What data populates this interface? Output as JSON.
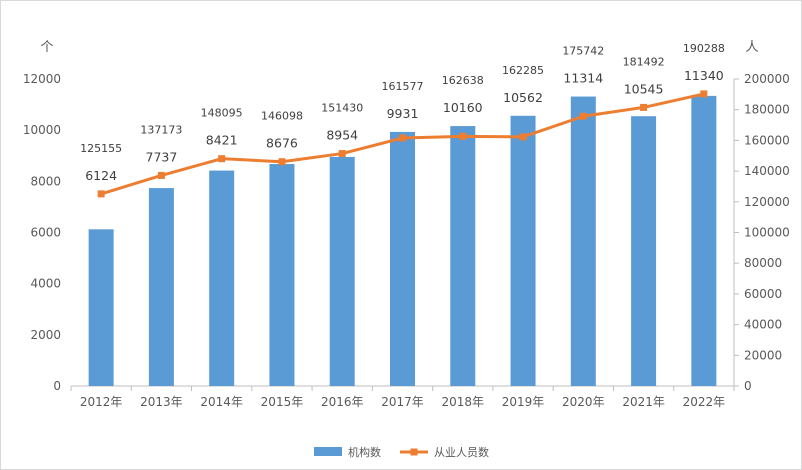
{
  "chart_data": {
    "type": "bar",
    "categories": [
      "2012年",
      "2013年",
      "2014年",
      "2015年",
      "2016年",
      "2017年",
      "2018年",
      "2019年",
      "2020年",
      "2021年",
      "2022年"
    ],
    "series": [
      {
        "name": "机构数",
        "type": "bar",
        "axis": "left",
        "color": "#5B9BD5",
        "values": [
          6124,
          7737,
          8421,
          8676,
          8954,
          9931,
          10160,
          10562,
          11314,
          10545,
          11340
        ]
      },
      {
        "name": "从业人员数",
        "type": "line",
        "axis": "right",
        "color": "#ED7D31",
        "values": [
          125155,
          137173,
          148095,
          146098,
          151430,
          161577,
          162638,
          162285,
          175742,
          181492,
          190288
        ]
      }
    ],
    "y_left": {
      "unit": "个",
      "min": 0,
      "max": 12000,
      "ticks": [
        0,
        2000,
        4000,
        6000,
        8000,
        10000,
        12000
      ]
    },
    "y_right": {
      "unit": "人",
      "min": 0,
      "max": 200000,
      "ticks": [
        0,
        20000,
        40000,
        60000,
        80000,
        100000,
        120000,
        140000,
        160000,
        180000,
        200000
      ]
    },
    "grid": false,
    "legend_position": "bottom"
  }
}
